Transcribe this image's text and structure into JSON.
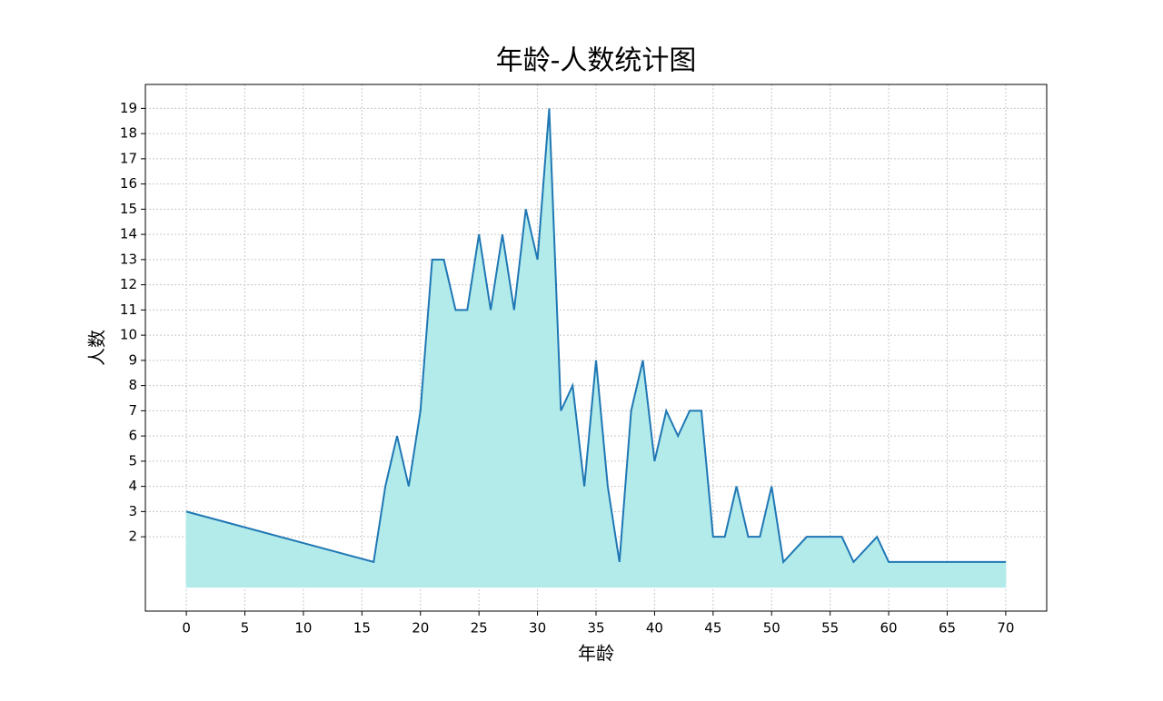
{
  "chart_data": {
    "type": "line",
    "title": "年龄-人数统计图",
    "x_label": "年龄",
    "y_label": "人数",
    "x": [
      0,
      16,
      17,
      18,
      19,
      20,
      21,
      22,
      23,
      24,
      25,
      26,
      27,
      28,
      29,
      30,
      31,
      32,
      33,
      34,
      35,
      36,
      37,
      38,
      39,
      40,
      41,
      42,
      43,
      44,
      45,
      46,
      47,
      48,
      49,
      50,
      51,
      53,
      54,
      55,
      56,
      57,
      59,
      60,
      61,
      62,
      63,
      64,
      65,
      66,
      67,
      68,
      69,
      70
    ],
    "values": [
      3,
      1,
      4,
      6,
      4,
      7,
      13,
      13,
      11,
      11,
      14,
      11,
      14,
      11,
      15,
      13,
      19,
      7,
      8,
      4,
      9,
      4,
      1,
      7,
      9,
      5,
      7,
      6,
      7,
      7,
      2,
      2,
      4,
      2,
      2,
      4,
      1,
      2,
      2,
      2,
      2,
      1,
      2,
      1,
      1,
      1,
      1,
      1,
      1,
      1,
      1,
      1,
      1,
      1
    ],
    "color": "#1f77b4",
    "fill_color": "#b3ebeb",
    "xlim": [
      -3.5,
      73.5
    ],
    "xticks": [
      0,
      5,
      10,
      15,
      20,
      25,
      30,
      35,
      40,
      45,
      50,
      55,
      60,
      65,
      70
    ],
    "ylim": [
      -0.95,
      19.95
    ],
    "yticks": [
      2,
      3,
      4,
      5,
      6,
      7,
      8,
      9,
      10,
      11,
      12,
      13,
      14,
      15,
      16,
      17,
      18,
      19
    ],
    "grid": true
  }
}
